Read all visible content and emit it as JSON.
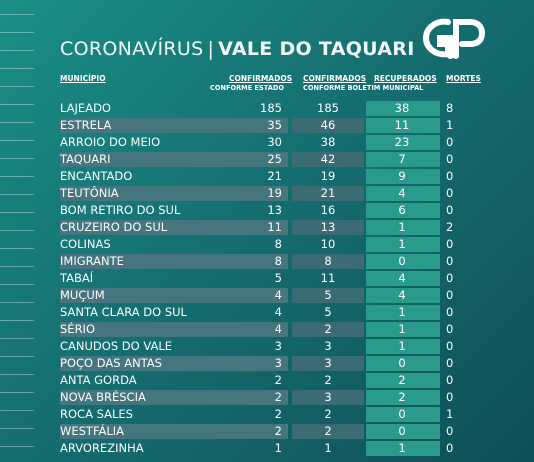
{
  "title": {
    "part1": "CORONAVÍRUS",
    "sep": "|",
    "part2": "VALE DO TAQUARI"
  },
  "logo_text": "GP",
  "headers": {
    "municipio": "MUNICÍPIO",
    "conf_estado_1": "CONFIRMADOS",
    "conf_estado_2": "CONFORME ESTADO",
    "conf_mun_1": "CONFIRMADOS",
    "conf_mun_2": "CONFORME BOLETIM MUNICIPAL",
    "recuperados": "RECUPERADOS",
    "mortes": "MORTES"
  },
  "rows": [
    [
      "LAJEADO",
      "185",
      "185",
      "38",
      "8"
    ],
    [
      "ESTRELA",
      "35",
      "46",
      "11",
      "1"
    ],
    [
      "ARROIO DO MEIO",
      "30",
      "38",
      "23",
      "0"
    ],
    [
      "TAQUARI",
      "25",
      "42",
      "7",
      "0"
    ],
    [
      "ENCANTADO",
      "21",
      "19",
      "9",
      "0"
    ],
    [
      "TEUTÔNIA",
      "19",
      "21",
      "4",
      "0"
    ],
    [
      "BOM RETIRO DO SUL",
      "13",
      "16",
      "6",
      "0"
    ],
    [
      "CRUZEIRO DO SUL",
      "11",
      "13",
      "1",
      "2"
    ],
    [
      "COLINAS",
      "8",
      "10",
      "1",
      "0"
    ],
    [
      "IMIGRANTE",
      "8",
      "8",
      "0",
      "0"
    ],
    [
      "TABAÍ",
      "5",
      "11",
      "4",
      "0"
    ],
    [
      "MUÇUM",
      "4",
      "5",
      "4",
      "0"
    ],
    [
      "SANTA CLARA DO SUL",
      "4",
      "5",
      "1",
      "0"
    ],
    [
      "SÉRIO",
      "4",
      "2",
      "1",
      "0"
    ],
    [
      "CANUDOS DO VALE",
      "3",
      "3",
      "1",
      "0"
    ],
    [
      "POÇO DAS ANTAS",
      "3",
      "3",
      "0",
      "0"
    ],
    [
      "ANTA GORDA",
      "2",
      "2",
      "2",
      "0"
    ],
    [
      "NOVA BRÉSCIA",
      "2",
      "3",
      "2",
      "0"
    ],
    [
      "ROCA SALES",
      "2",
      "2",
      "0",
      "1"
    ],
    [
      "WESTFÁLIA",
      "2",
      "2",
      "0",
      "0"
    ],
    [
      "ARVOREZINHA",
      "1",
      "1",
      "1",
      "0"
    ]
  ],
  "colors": {
    "band_name": "#45767e",
    "band_conf": "#3c6c73",
    "band_rec": "#2a9a8a",
    "band_alt": "#2a5a62"
  }
}
